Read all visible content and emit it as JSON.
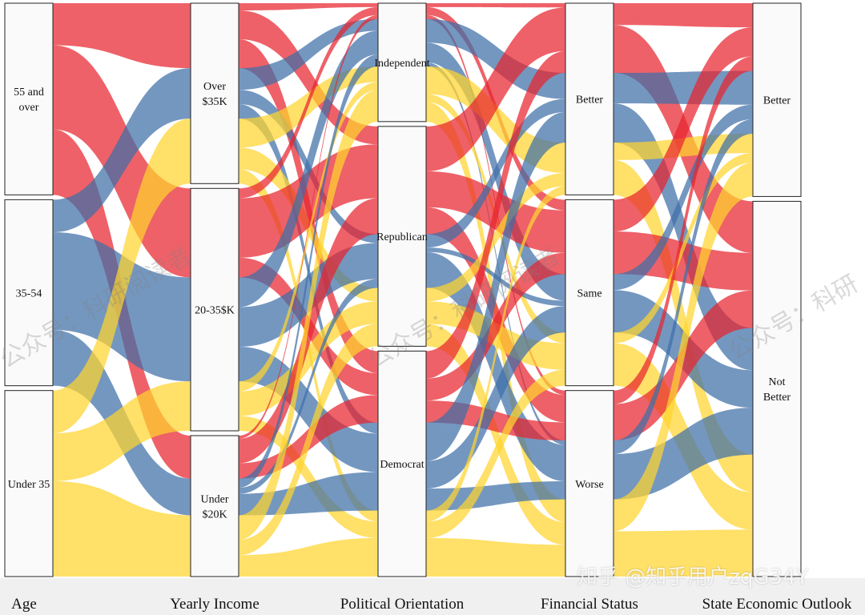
{
  "chart_data": {
    "type": "parallel-categories",
    "dimensions": [
      {
        "label": "Age",
        "categories": [
          "55 and over",
          "35-54",
          "Under 35"
        ]
      },
      {
        "label": "Yearly Income",
        "categories": [
          "Over $35K",
          "20-35$K",
          "Under $20K"
        ]
      },
      {
        "label": "Political Orientation",
        "categories": [
          "Independent",
          "Republican",
          "Democrat"
        ]
      },
      {
        "label": "Financial Status",
        "categories": [
          "Better",
          "Same",
          "Worse"
        ]
      },
      {
        "label": "State Economic Outlook",
        "categories": [
          "Better",
          "Not Better"
        ]
      }
    ],
    "category_shares": {
      "Age": [
        0.34,
        0.33,
        0.33
      ],
      "Yearly Income": [
        0.32,
        0.43,
        0.25
      ],
      "Political Orientation": [
        0.21,
        0.39,
        0.4
      ],
      "Financial Status": [
        0.34,
        0.33,
        0.33
      ],
      "State Economic Outlook": [
        0.34,
        0.66
      ]
    },
    "color_by": "Age",
    "colors": {
      "55 and over": "#e8242e",
      "35-54": "#3f6fa8",
      "Under 35": "#ffd42e"
    },
    "age_to_income_flows": [
      [
        0.4,
        0.4,
        0.2
      ],
      [
        0.3,
        0.45,
        0.25
      ],
      [
        0.26,
        0.44,
        0.3
      ]
    ]
  },
  "watermarks": {
    "left": "公众号：科研阅读者",
    "center": "公众号：科研阅读者",
    "right": "公众号：科研",
    "bottom": "知乎 @知乎用户zqG34Y"
  }
}
